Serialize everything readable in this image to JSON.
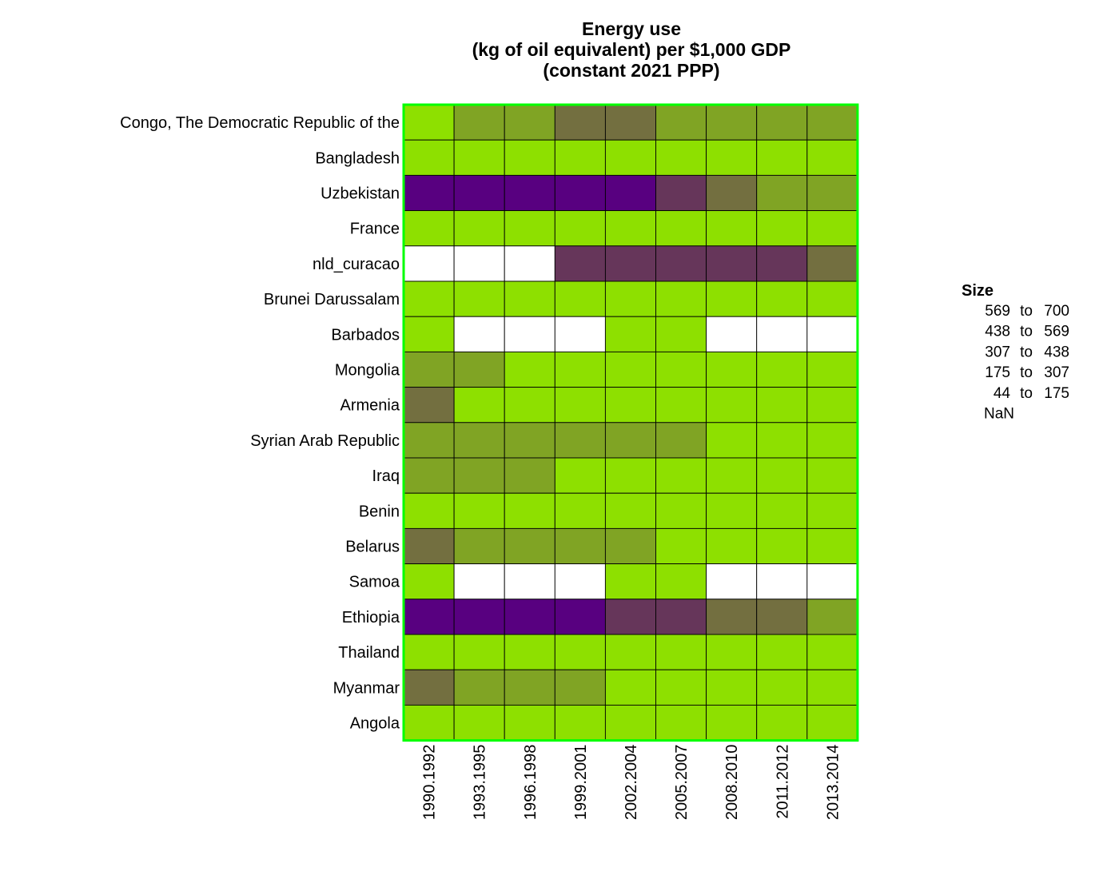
{
  "chart_data": {
    "type": "heatmap",
    "title_lines": [
      "Energy use",
      "(kg of oil equivalent) per $1,000 GDP",
      "(constant 2021 PPP)"
    ],
    "xlabel": "",
    "ylabel": "",
    "columns": [
      "1990.1992",
      "1993.1995",
      "1996.1998",
      "1999.2001",
      "2002.2004",
      "2005.2007",
      "2008.2010",
      "2011.2012",
      "2013.2014"
    ],
    "rows": [
      "Congo, The Democratic Republic of the",
      "Bangladesh",
      "Uzbekistan",
      "France",
      "nld_curacao",
      "Brunei Darussalam",
      "Barbados",
      "Mongolia",
      "Armenia",
      "Syrian Arab Republic",
      "Iraq",
      "Benin",
      "Belarus",
      "Samoa",
      "Ethiopia",
      "Thailand",
      "Myanmar",
      "Angola"
    ],
    "cell_bins": [
      [
        4,
        3,
        3,
        2,
        2,
        3,
        3,
        3,
        3
      ],
      [
        4,
        4,
        4,
        4,
        4,
        4,
        4,
        4,
        4
      ],
      [
        0,
        0,
        0,
        0,
        0,
        1,
        2,
        3,
        3
      ],
      [
        4,
        4,
        4,
        4,
        4,
        4,
        4,
        4,
        4
      ],
      [
        5,
        5,
        5,
        1,
        1,
        1,
        1,
        1,
        2
      ],
      [
        4,
        4,
        4,
        4,
        4,
        4,
        4,
        4,
        4
      ],
      [
        4,
        5,
        5,
        5,
        4,
        4,
        5,
        5,
        5
      ],
      [
        3,
        3,
        4,
        4,
        4,
        4,
        4,
        4,
        4
      ],
      [
        2,
        4,
        4,
        4,
        4,
        4,
        4,
        4,
        4
      ],
      [
        3,
        3,
        3,
        3,
        3,
        3,
        4,
        4,
        4
      ],
      [
        3,
        3,
        3,
        4,
        4,
        4,
        4,
        4,
        4
      ],
      [
        4,
        4,
        4,
        4,
        4,
        4,
        4,
        4,
        4
      ],
      [
        2,
        3,
        3,
        3,
        3,
        4,
        4,
        4,
        4
      ],
      [
        4,
        5,
        5,
        5,
        4,
        4,
        5,
        5,
        5
      ],
      [
        0,
        0,
        0,
        0,
        1,
        1,
        2,
        2,
        3
      ],
      [
        4,
        4,
        4,
        4,
        4,
        4,
        4,
        4,
        4
      ],
      [
        2,
        3,
        3,
        3,
        4,
        4,
        4,
        4,
        4
      ],
      [
        4,
        4,
        4,
        4,
        4,
        4,
        4,
        4,
        4
      ]
    ],
    "legend": {
      "title": "Size",
      "position": "right",
      "bins": [
        {
          "from": "569",
          "to": "700",
          "color": "#580080"
        },
        {
          "from": "438",
          "to": "569",
          "color": "#66365a"
        },
        {
          "from": "307",
          "to": "438",
          "color": "#736f40"
        },
        {
          "from": "175",
          "to": "307",
          "color": "#80a424"
        },
        {
          "from": "44",
          "to": "175",
          "color": "#8ee000"
        },
        {
          "from": "NaN",
          "to": "",
          "color": "#ffffff"
        }
      ],
      "range_word": "to"
    },
    "colors": {
      "panel_border": "#00ff00",
      "cell_border": "#000000"
    }
  }
}
